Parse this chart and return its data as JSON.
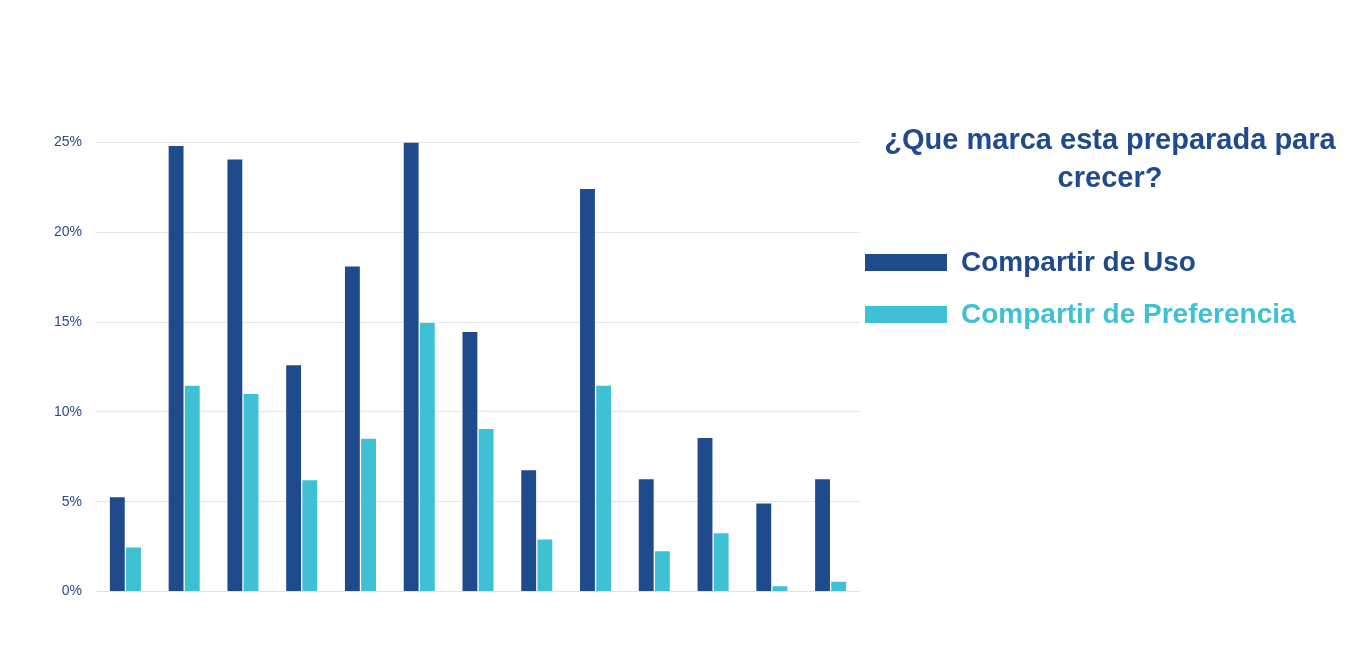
{
  "chart_data": {
    "type": "bar",
    "title": "¿Que marca esta preparada para crecer?",
    "categories": [
      null,
      null,
      null,
      null,
      null,
      null,
      null,
      null,
      null,
      null,
      null,
      null,
      null
    ],
    "series": [
      {
        "name": "Compartir de Uso",
        "color": "#1f4a8c",
        "values": [
          5.25,
          24.8,
          24.05,
          12.6,
          18.1,
          25.0,
          14.45,
          6.75,
          22.4,
          6.25,
          8.55,
          4.9,
          6.25
        ]
      },
      {
        "name": "Compartir de Preferencia",
        "color": "#3ec1d3",
        "values": [
          2.45,
          11.45,
          11.0,
          6.2,
          8.5,
          14.95,
          9.05,
          2.9,
          11.45,
          2.25,
          3.25,
          0.3,
          0.55
        ]
      }
    ],
    "ylim": [
      0,
      25
    ],
    "yticks": [
      {
        "value": 0,
        "label": "0%"
      },
      {
        "value": 5,
        "label": "5%"
      },
      {
        "value": 10,
        "label": "10%"
      },
      {
        "value": 15,
        "label": "15%"
      },
      {
        "value": 20,
        "label": "20%"
      },
      {
        "value": 25,
        "label": "25%"
      }
    ],
    "grid": "y",
    "legend": "right"
  }
}
